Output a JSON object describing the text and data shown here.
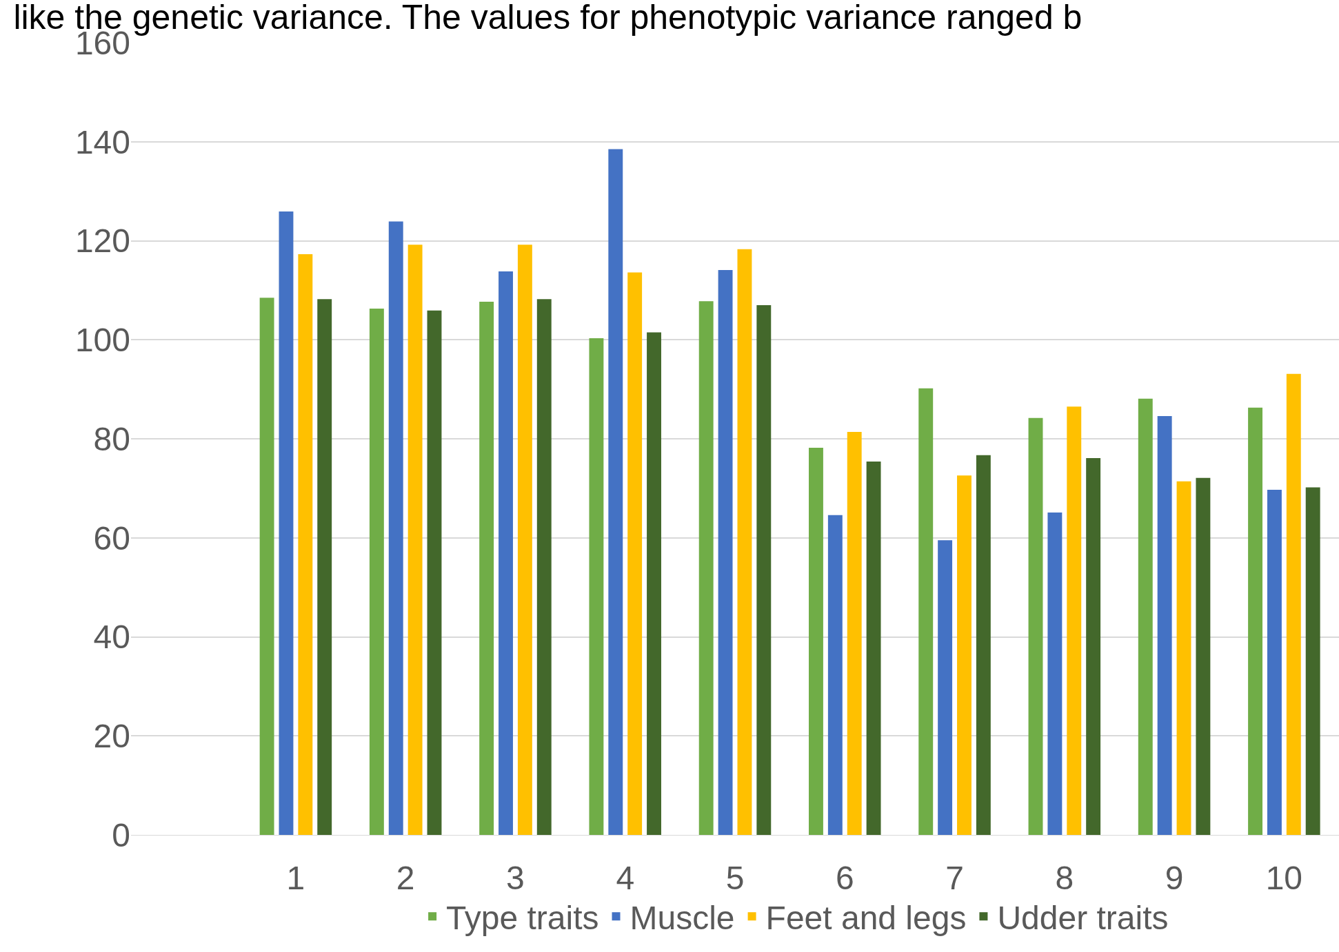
{
  "chart_data": {
    "type": "bar",
    "title": "like the genetic variance. The values for phenotypic variance ranged b",
    "categories": [
      null,
      "1",
      "2",
      "3",
      "4",
      "5",
      "6",
      "7",
      "8",
      "9",
      "10"
    ],
    "series": [
      {
        "name": "Type traits",
        "color": "#70ad47",
        "values": [
          null,
          108.5,
          106.3,
          107.7,
          100.3,
          107.8,
          78.2,
          90.2,
          84.2,
          88.1,
          86.3
        ]
      },
      {
        "name": "Muscle",
        "color": "#4472c4",
        "values": [
          null,
          125.9,
          123.9,
          113.8,
          138.5,
          114.1,
          64.6,
          59.5,
          65.1,
          84.6,
          69.7
        ]
      },
      {
        "name": "Feet and legs",
        "color": "#ffc000",
        "values": [
          null,
          117.3,
          119.2,
          119.2,
          113.6,
          118.3,
          81.4,
          72.6,
          86.5,
          71.4,
          93.1
        ]
      },
      {
        "name": "Udder traits",
        "color": "#43682b",
        "values": [
          null,
          108.2,
          105.9,
          108.2,
          101.5,
          107.0,
          75.4,
          76.7,
          76.1,
          72.1,
          70.2
        ]
      }
    ],
    "ylim": [
      0,
      160
    ],
    "yticks": [
      0,
      20,
      40,
      60,
      80,
      100,
      120,
      140,
      160
    ],
    "grid": "y",
    "legend": "bottom"
  }
}
